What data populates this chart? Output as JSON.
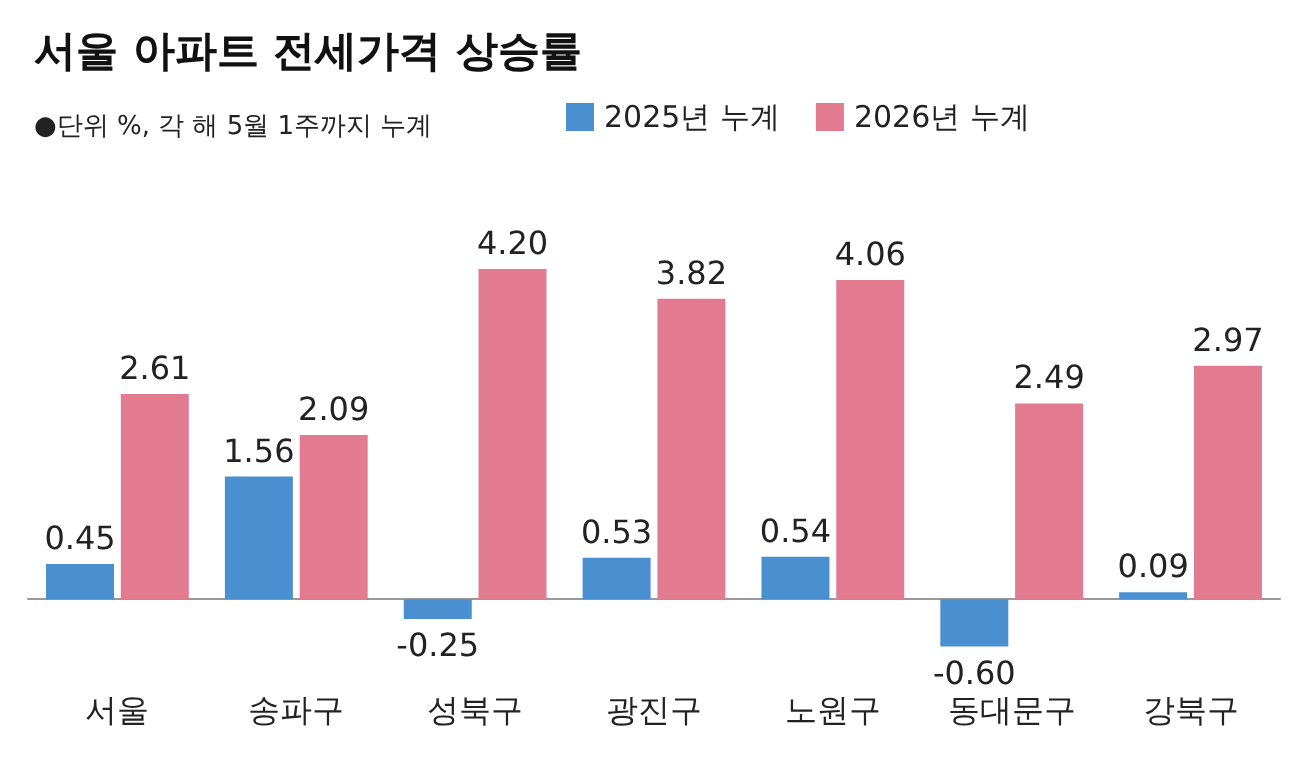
{
  "chart_data": {
    "type": "bar",
    "title": "서울 아파트 전세가격 상승률",
    "subtitle": "●단위 %, 각 해 5월 1주까지 누계",
    "categories": [
      "서울",
      "송파구",
      "성북구",
      "광진구",
      "노원구",
      "동대문구",
      "강북구"
    ],
    "series": [
      {
        "name": "2025년 누계",
        "color": "#4a8fd0",
        "values": [
          0.45,
          1.56,
          -0.25,
          0.53,
          0.54,
          -0.6,
          0.09
        ],
        "value_labels": [
          "0.45",
          "1.56",
          "-0.25",
          "0.53",
          "0.54",
          "-0.60",
          "0.09"
        ]
      },
      {
        "name": "2026년 누계",
        "color": "#e27b8f",
        "values": [
          2.61,
          2.09,
          4.2,
          3.82,
          4.06,
          2.49,
          2.97
        ],
        "value_labels": [
          "2.61",
          "2.09",
          "4.20",
          "3.82",
          "4.06",
          "2.49",
          "2.97"
        ]
      }
    ],
    "legend": "top"
  }
}
